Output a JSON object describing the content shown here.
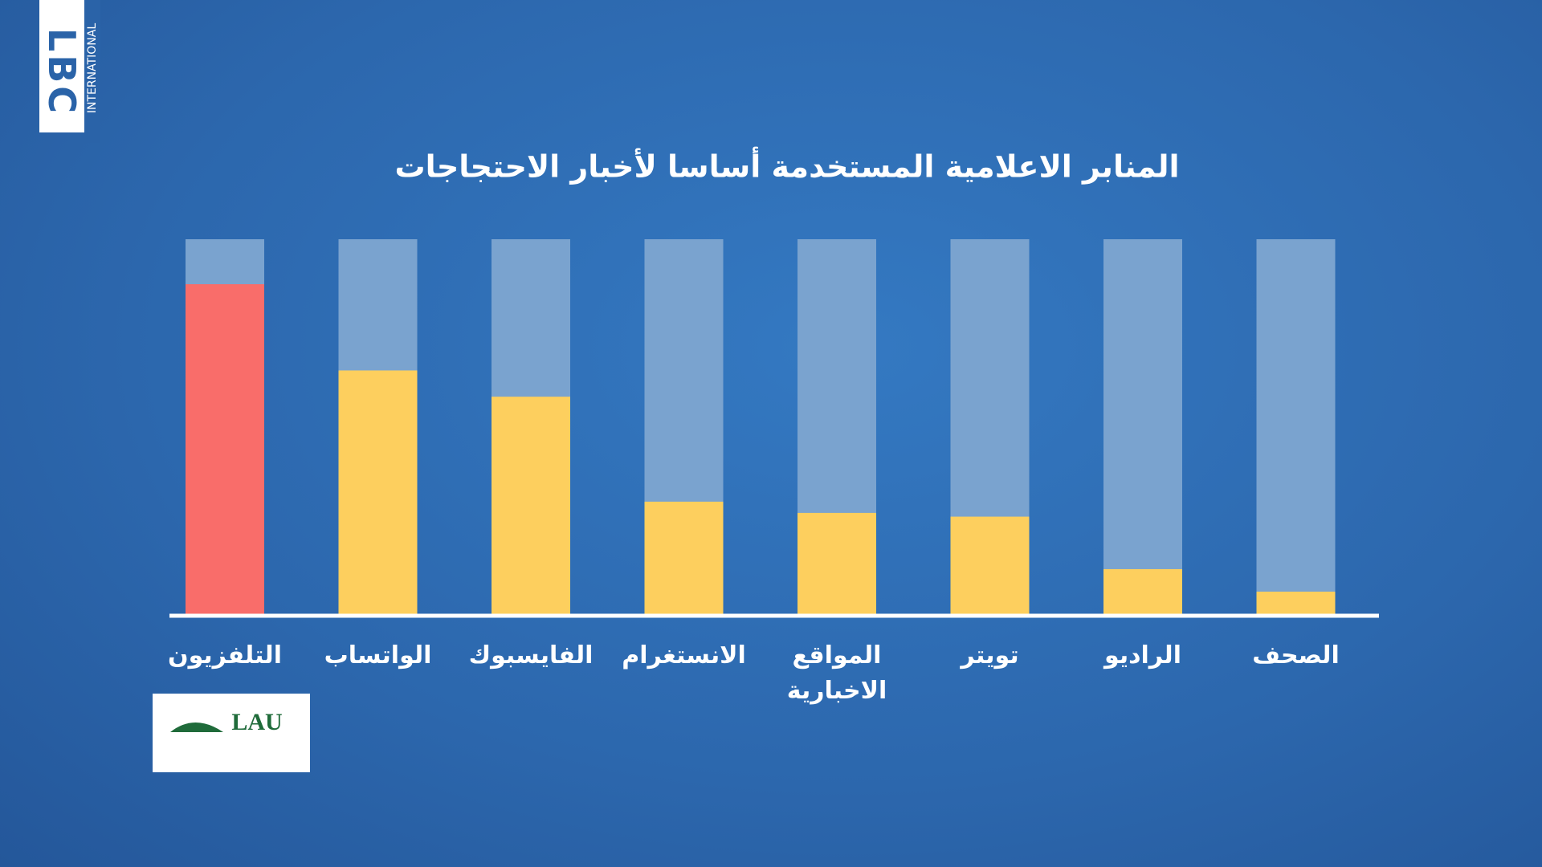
{
  "channel_logo": "LBC",
  "channel_logo_sub": "INTERNATIONAL",
  "sponsor_logo": "LAU",
  "chart_data": {
    "type": "bar",
    "title": "المنابر الاعلامية المستخدمة أساسا لأخبار الاحتجاجات",
    "categories": [
      "التلفزيون",
      "الواتساب",
      "الفايسبوك",
      "الانستغرام",
      "المواقع الاخبارية",
      "تويتر",
      "الراديو",
      "الصحف"
    ],
    "values": [
      88,
      65,
      58,
      30,
      27,
      26,
      12,
      6
    ],
    "colors": [
      "#f96d6a",
      "#fdcf5e",
      "#fdcf5e",
      "#fdcf5e",
      "#fdcf5e",
      "#fdcf5e",
      "#fdcf5e",
      "#fdcf5e"
    ],
    "track_color": "#7aa3cf",
    "ylim": [
      0,
      100
    ]
  }
}
